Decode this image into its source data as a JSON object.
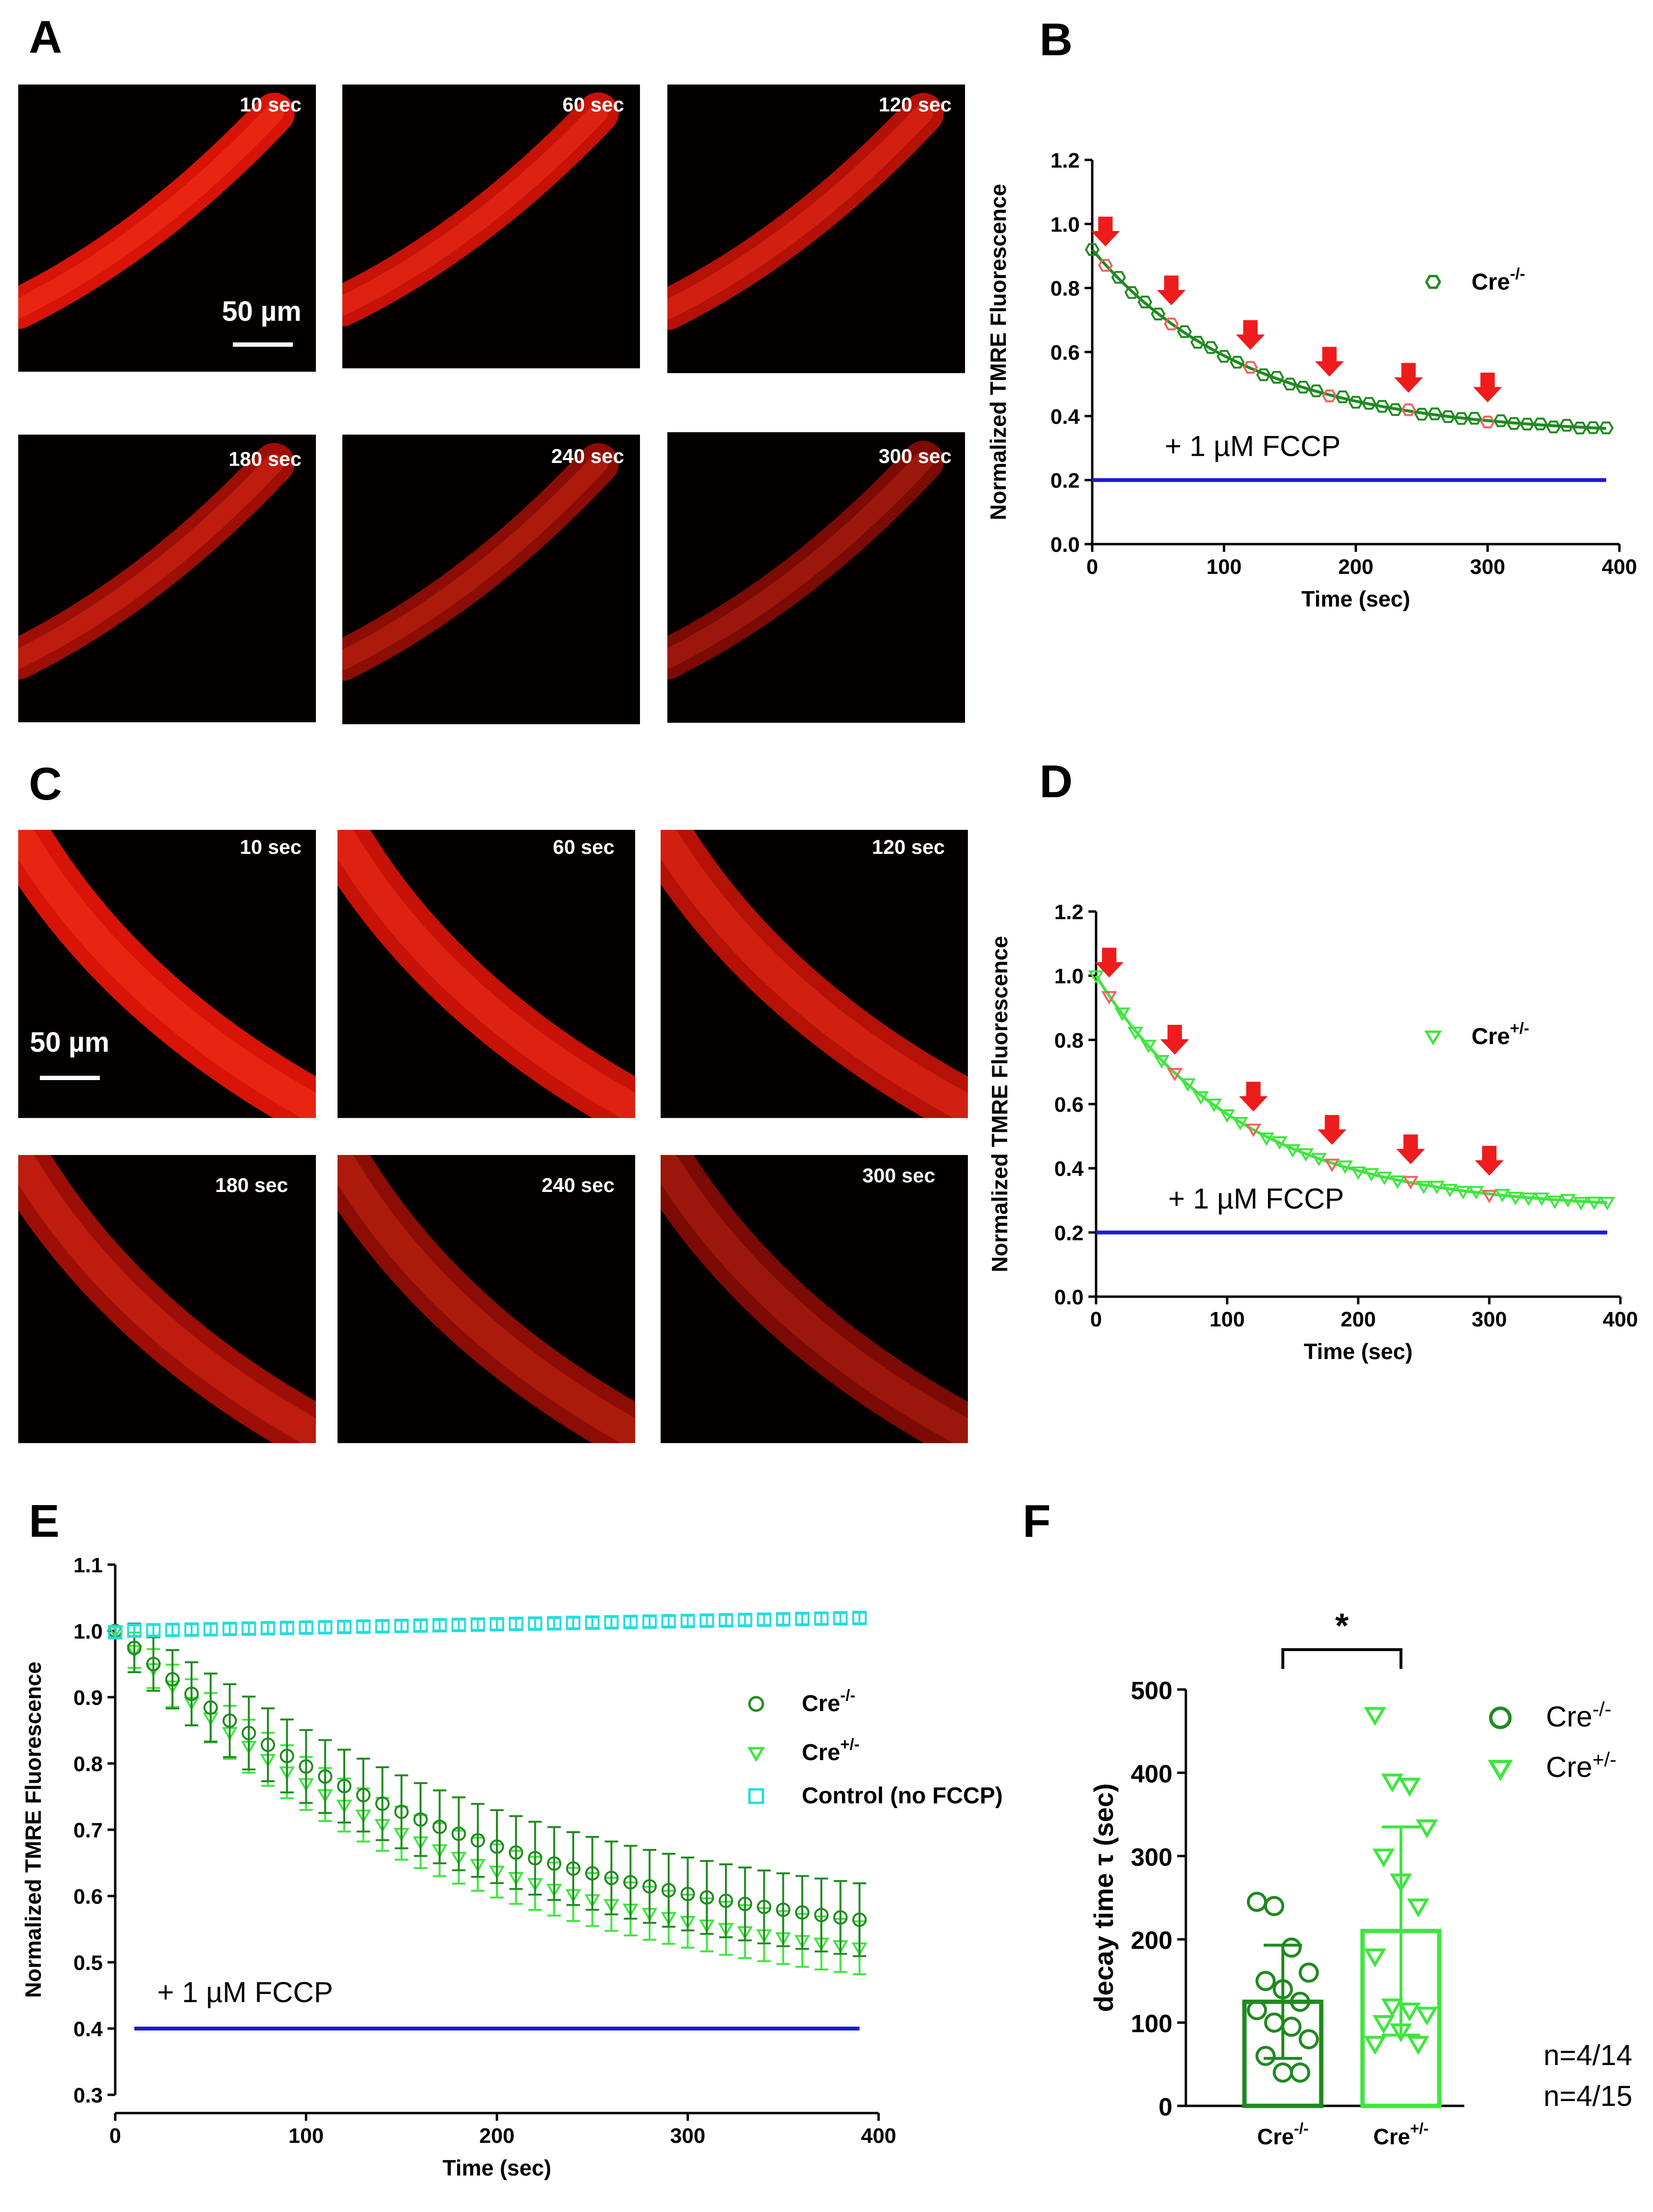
{
  "panels": {
    "A": {
      "label": "A",
      "scale_bar_label": "50 µm",
      "frames": [
        "10 sec",
        "60 sec",
        "120 sec",
        "180 sec",
        "240 sec",
        "300 sec"
      ]
    },
    "C": {
      "label": "C",
      "scale_bar_label": "50 µm",
      "frames": [
        "10 sec",
        "60 sec",
        "120 sec",
        "180 sec",
        "240 sec",
        "300 sec"
      ]
    }
  },
  "colors": {
    "dark_green": "#1f8a1f",
    "light_green": "#3ee63e",
    "cyan": "#22dddd",
    "blue": "#1a1adb",
    "red": "#ee1c1c"
  },
  "chart_data": [
    {
      "panel": "B",
      "type": "scatter",
      "xlabel": "Time (sec)",
      "ylabel": "Normalized TMRE Fluorescence",
      "xlim": [
        0,
        400
      ],
      "ylim": [
        0,
        1.2
      ],
      "xticks": [
        "0",
        "100",
        "200",
        "300",
        "400"
      ],
      "yticks": [
        "0.0",
        "0.2",
        "0.4",
        "0.6",
        "0.8",
        "1.0",
        "1.2"
      ],
      "series": [
        {
          "name": "Cre",
          "sup": "-/-",
          "marker": "hexagon",
          "color": "#1f8a1f",
          "fit": {
            "a": 0.34,
            "b": 0.58,
            "tau": 118
          }
        }
      ],
      "x": [
        0,
        10,
        20,
        30,
        40,
        50,
        60,
        70,
        80,
        90,
        100,
        110,
        120,
        130,
        140,
        150,
        160,
        170,
        180,
        190,
        200,
        210,
        220,
        230,
        240,
        250,
        260,
        270,
        280,
        290,
        300,
        310,
        320,
        330,
        340,
        350,
        360,
        370,
        380,
        390
      ],
      "highlight_times": [
        10,
        60,
        120,
        180,
        240,
        300
      ],
      "annotation": "+ 1 µM FCCP",
      "fccp_level": 0.2,
      "fccp_range": [
        0,
        390
      ]
    },
    {
      "panel": "D",
      "type": "scatter",
      "xlabel": "Time (sec)",
      "ylabel": "Normalized TMRE Fluorescence",
      "xlim": [
        0,
        400
      ],
      "ylim": [
        0,
        1.2
      ],
      "xticks": [
        "0",
        "100",
        "200",
        "300",
        "400"
      ],
      "yticks": [
        "0.0",
        "0.2",
        "0.4",
        "0.6",
        "0.8",
        "1.0",
        "1.2"
      ],
      "series": [
        {
          "name": "Cre",
          "sup": "+/-",
          "marker": "triangle-down",
          "color": "#3ee63e",
          "fit": {
            "a": 0.27,
            "b": 0.73,
            "tau": 112
          }
        }
      ],
      "x": [
        0,
        10,
        20,
        30,
        40,
        50,
        60,
        70,
        80,
        90,
        100,
        110,
        120,
        130,
        140,
        150,
        160,
        170,
        180,
        190,
        200,
        210,
        220,
        230,
        240,
        250,
        260,
        270,
        280,
        290,
        300,
        310,
        320,
        330,
        340,
        350,
        360,
        370,
        380,
        390
      ],
      "highlight_times": [
        10,
        60,
        120,
        180,
        240,
        300
      ],
      "annotation": "+ 1 µM FCCP",
      "fccp_level": 0.2,
      "fccp_range": [
        0,
        390
      ]
    },
    {
      "panel": "E",
      "type": "line",
      "xlabel": "Time (sec)",
      "ylabel": "Normalized TMRE Fluorescence",
      "xlim": [
        0,
        400
      ],
      "ylim": [
        0.3,
        1.1
      ],
      "xticks": [
        "0",
        "100",
        "200",
        "300",
        "400"
      ],
      "yticks": [
        "0.3",
        "0.4",
        "0.5",
        "0.6",
        "0.7",
        "0.8",
        "0.9",
        "1.0",
        "1.1"
      ],
      "x": [
        0,
        10,
        20,
        30,
        40,
        50,
        60,
        70,
        80,
        90,
        100,
        110,
        120,
        130,
        140,
        150,
        160,
        170,
        180,
        190,
        200,
        210,
        220,
        230,
        240,
        250,
        260,
        270,
        280,
        290,
        300,
        310,
        320,
        330,
        340,
        350,
        360,
        370,
        380,
        390
      ],
      "series": [
        {
          "name": "Cre",
          "sup": "-/-",
          "marker": "circle",
          "color": "#1f8a1f",
          "fit": {
            "a": 0.5,
            "b": 0.5,
            "tau": 190
          },
          "err": 0.055
        },
        {
          "name": "Cre",
          "sup": "+/-",
          "marker": "triangle-down",
          "color": "#3ee63e",
          "fit": {
            "a": 0.46,
            "b": 0.54,
            "tau": 180
          },
          "err": 0.04
        },
        {
          "name": "Control (no FCCP)",
          "sup": "",
          "marker": "square",
          "color": "#22dddd",
          "fit": {
            "a": 1.0,
            "b": 0.0,
            "tau": 1
          },
          "slope": 5e-05,
          "err": 0.008
        }
      ],
      "annotation": "+ 1 µM FCCP",
      "fccp_level": 0.4,
      "fccp_range": [
        10,
        390
      ]
    },
    {
      "panel": "F",
      "type": "bar",
      "ylabel": "decay time τ (sec)",
      "ylim": [
        0,
        500
      ],
      "yticks": [
        "0",
        "100",
        "200",
        "300",
        "400",
        "500"
      ],
      "categories": [
        {
          "name": "Cre",
          "sup": "-/-"
        },
        {
          "name": "Cre",
          "sup": "+/-"
        }
      ],
      "values": [
        125,
        210
      ],
      "sd": [
        68,
        125
      ],
      "points": [
        [
          245,
          240,
          190,
          160,
          150,
          140,
          125,
          115,
          100,
          95,
          80,
          60,
          40,
          40
        ],
        [
          470,
          390,
          385,
          335,
          300,
          270,
          240,
          180,
          120,
          115,
          110,
          100,
          90,
          75,
          75
        ]
      ],
      "significance": "*",
      "legend": [
        {
          "name": "Cre",
          "sup": "-/-"
        },
        {
          "name": "Cre",
          "sup": "+/-"
        }
      ],
      "n_labels": [
        "n=4/14",
        "n=4/15"
      ]
    }
  ]
}
